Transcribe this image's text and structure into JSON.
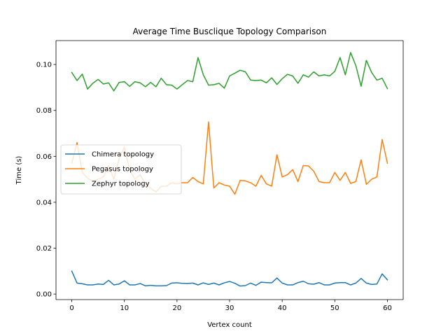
{
  "chart_data": {
    "type": "line",
    "title": "Average Time Busclique Topology Comparison",
    "xlabel": "Vertex count",
    "ylabel": "Time (s)",
    "xlim": [
      -3,
      63
    ],
    "ylim": [
      -0.0024,
      0.1104
    ],
    "x_ticks": [
      0,
      10,
      20,
      30,
      40,
      50,
      60
    ],
    "y_ticks": [
      0.0,
      0.02,
      0.04,
      0.06,
      0.08,
      0.1
    ],
    "y_tick_labels": [
      "0.00",
      "0.02",
      "0.04",
      "0.06",
      "0.08",
      "0.10"
    ],
    "grid": false,
    "legend_position": "center-left",
    "x": [
      0,
      1,
      2,
      3,
      4,
      5,
      6,
      7,
      8,
      9,
      10,
      11,
      12,
      13,
      14,
      15,
      16,
      17,
      18,
      19,
      20,
      21,
      22,
      23,
      24,
      25,
      26,
      27,
      28,
      29,
      30,
      31,
      32,
      33,
      34,
      35,
      36,
      37,
      38,
      39,
      40,
      41,
      42,
      43,
      44,
      45,
      46,
      47,
      48,
      49,
      50,
      51,
      52,
      53,
      54,
      55,
      56,
      57,
      58,
      59,
      60
    ],
    "series": [
      {
        "name": "Chimera topology",
        "color": "#1f77b4",
        "values": [
          0.01,
          0.0048,
          0.0045,
          0.004,
          0.004,
          0.0044,
          0.0042,
          0.006,
          0.004,
          0.0044,
          0.0058,
          0.004,
          0.004,
          0.0046,
          0.0036,
          0.0038,
          0.0036,
          0.0036,
          0.0037,
          0.0048,
          0.0049,
          0.0047,
          0.0046,
          0.0048,
          0.004,
          0.0049,
          0.0042,
          0.0048,
          0.004,
          0.0049,
          0.0055,
          0.0047,
          0.0035,
          0.0037,
          0.0048,
          0.0038,
          0.0052,
          0.005,
          0.0049,
          0.007,
          0.0048,
          0.004,
          0.004,
          0.005,
          0.0056,
          0.0045,
          0.0043,
          0.005,
          0.004,
          0.004,
          0.0048,
          0.005,
          0.005,
          0.004,
          0.0048,
          0.0068,
          0.0048,
          0.0042,
          0.0044,
          0.0088,
          0.0062
        ]
      },
      {
        "name": "Pegasus topology",
        "color": "#ff7f0e",
        "values": [
          0.057,
          0.066,
          0.053,
          0.0505,
          0.049,
          0.05,
          0.051,
          0.056,
          0.05,
          0.059,
          0.064,
          0.054,
          0.05,
          0.052,
          0.048,
          0.046,
          0.0445,
          0.047,
          0.047,
          0.0485,
          0.048,
          0.0485,
          0.0485,
          0.0508,
          0.049,
          0.048,
          0.075,
          0.0462,
          0.0485,
          0.0475,
          0.047,
          0.0435,
          0.0495,
          0.0493,
          0.0485,
          0.047,
          0.0517,
          0.048,
          0.047,
          0.0607,
          0.051,
          0.052,
          0.0542,
          0.049,
          0.056,
          0.0558,
          0.0535,
          0.049,
          0.0485,
          0.0485,
          0.053,
          0.0495,
          0.053,
          0.0482,
          0.049,
          0.0585,
          0.0478,
          0.05,
          0.051,
          0.0673,
          0.057
        ]
      },
      {
        "name": "Zephyr topology",
        "color": "#2ca02c",
        "values": [
          0.0965,
          0.093,
          0.0958,
          0.0893,
          0.0918,
          0.0935,
          0.0915,
          0.092,
          0.0885,
          0.0922,
          0.0925,
          0.0905,
          0.0925,
          0.092,
          0.0903,
          0.0922,
          0.0903,
          0.094,
          0.0912,
          0.091,
          0.0893,
          0.0912,
          0.093,
          0.0925,
          0.103,
          0.0955,
          0.091,
          0.0912,
          0.0918,
          0.0897,
          0.095,
          0.0962,
          0.0975,
          0.0968,
          0.0932,
          0.093,
          0.0932,
          0.092,
          0.0942,
          0.0913,
          0.0938,
          0.0957,
          0.095,
          0.0918,
          0.0955,
          0.0945,
          0.0968,
          0.095,
          0.0955,
          0.095,
          0.097,
          0.103,
          0.0955,
          0.1052,
          0.0995,
          0.0905,
          0.1018,
          0.0965,
          0.0932,
          0.094,
          0.0895
        ]
      }
    ]
  }
}
